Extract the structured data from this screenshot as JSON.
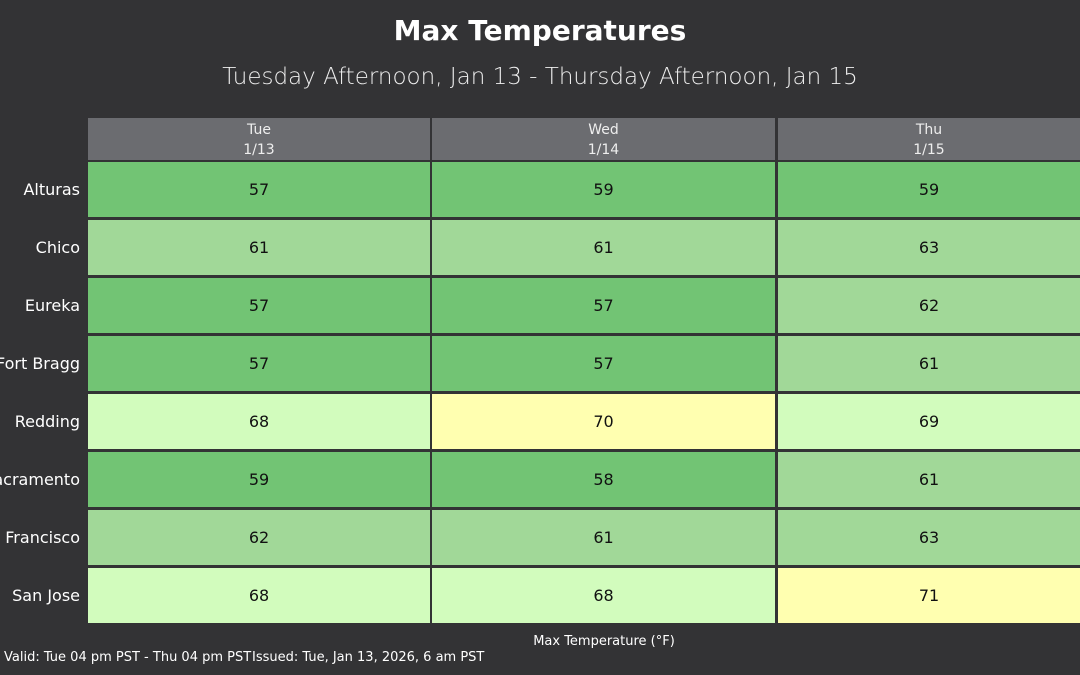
{
  "header": {
    "title": "Max Temperatures",
    "subtitle": "Tuesday Afternoon, Jan 13 - Thursday Afternoon, Jan 15"
  },
  "table": {
    "columns": [
      {
        "day": "Tue",
        "date": "1/13"
      },
      {
        "day": "Wed",
        "date": "1/14"
      },
      {
        "day": "Thu",
        "date": "1/15"
      }
    ],
    "rows": [
      {
        "label": "Alturas",
        "values": [
          57,
          59,
          59
        ],
        "colors": [
          "#72c474",
          "#72c474",
          "#72c474"
        ]
      },
      {
        "label": "Chico",
        "values": [
          61,
          61,
          63
        ],
        "colors": [
          "#a1d898",
          "#a1d898",
          "#a1d898"
        ]
      },
      {
        "label": "Eureka",
        "values": [
          57,
          57,
          62
        ],
        "colors": [
          "#72c474",
          "#72c474",
          "#a1d898"
        ]
      },
      {
        "label": "Fort Bragg",
        "values": [
          57,
          57,
          61
        ],
        "colors": [
          "#72c474",
          "#72c474",
          "#a1d898"
        ]
      },
      {
        "label": "Redding",
        "values": [
          68,
          70,
          69
        ],
        "colors": [
          "#d2fcbd",
          "#ffffb0",
          "#d2fcbd"
        ]
      },
      {
        "label": "Sacramento",
        "values": [
          59,
          58,
          61
        ],
        "colors": [
          "#72c474",
          "#72c474",
          "#a1d898"
        ]
      },
      {
        "label": "San Francisco",
        "values": [
          62,
          61,
          63
        ],
        "colors": [
          "#a1d898",
          "#a1d898",
          "#a1d898"
        ]
      },
      {
        "label": "San Jose",
        "values": [
          68,
          68,
          71
        ],
        "colors": [
          "#d2fcbd",
          "#d2fcbd",
          "#ffffb0"
        ]
      }
    ]
  },
  "footer": {
    "legend": "Max Temperature (°F)",
    "valid": "Valid: Tue 04 pm PST - Thu 04 pm PST",
    "issued": "Issued: Tue, Jan 13, 2026, 6 am PST"
  }
}
